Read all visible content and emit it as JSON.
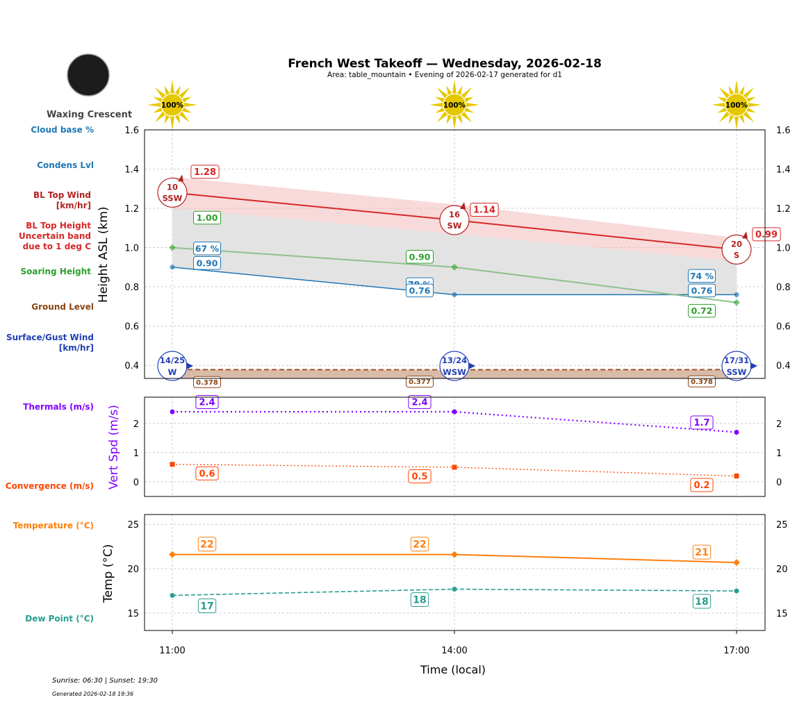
{
  "title": "French West Takeoff — Wednesday, 2026-02-18",
  "subtitle": "Area: table_mountain • Evening of 2026-02-17 generated for d1",
  "moon_phase": "Waxing Crescent",
  "footer": {
    "sun": "Sunrise: 06:30 | Sunset: 19:30",
    "generated": "Generated 2026-02-18 19:36"
  },
  "legend_labels": {
    "cloud_base": "Cloud base %",
    "condens": "Condens Lvl",
    "bl_wind_1": "BL Top Wind",
    "bl_wind_2": "[km/hr]",
    "bl_height_1": "BL Top Height",
    "bl_height_2": "Uncertain band",
    "bl_height_3": "due to 1 deg C",
    "soaring": "Soaring Height",
    "ground": "Ground Level",
    "surface_1": "Surface/Gust Wind",
    "surface_2": "[km/hr]",
    "thermals": "Thermals (m/s)",
    "convergence": "Convergence (m/s)",
    "temperature": "Temperature (°C)",
    "dew": "Dew Point (°C)"
  },
  "colors": {
    "cloud": "#1f77b4",
    "bl_wind": "#b22222",
    "bl_height": "#d62728",
    "soaring": "#2ca02c",
    "ground": "#8b4513",
    "surface": "#1f3fb4",
    "thermals": "#8000ff",
    "convergence": "#ff4500",
    "temperature": "#ff7f0e",
    "dew": "#2a9d8f",
    "sun": "#e6c800"
  },
  "chart_data": [
    {
      "type": "line",
      "ylabel": "Height ASL (km)",
      "ylim": [
        0.333,
        1.6
      ],
      "yticks": [
        "0.4",
        "0.6",
        "0.8",
        "1.0",
        "1.2",
        "1.4",
        "1.6"
      ],
      "grid": true,
      "x": [
        "11:00",
        "14:00",
        "17:00"
      ],
      "sun_percent": [
        "100%",
        "100%",
        "100%"
      ],
      "bl_top_height": {
        "values": [
          1.28,
          1.14,
          0.99
        ],
        "labels": [
          "1.28",
          "1.14",
          "0.99"
        ],
        "band_upper": [
          1.36,
          1.22,
          1.05
        ],
        "band_lower": [
          1.2,
          1.07,
          0.93
        ]
      },
      "bl_top_wind": {
        "speed": [
          "10",
          "16",
          "20"
        ],
        "dir": [
          "SSW",
          "SW",
          "S"
        ]
      },
      "soaring_height": {
        "values": [
          1.0,
          0.9,
          0.72
        ],
        "labels": [
          "1.00",
          "0.90",
          "0.72"
        ]
      },
      "condens_level": {
        "values": [
          0.9,
          0.76,
          0.76
        ],
        "labels": [
          "0.90",
          "0.76",
          "0.76"
        ]
      },
      "cloud_base_percent": [
        "67 %",
        "78 %",
        "74 %"
      ],
      "ground_level": {
        "values": [
          0.378,
          0.377,
          0.378
        ],
        "labels": [
          "0.378",
          "0.377",
          "0.378"
        ]
      },
      "surface_wind": {
        "speed": [
          "14/25",
          "13/24",
          "17/31"
        ],
        "dir": [
          "W",
          "WSW",
          "SSW"
        ]
      }
    },
    {
      "type": "line",
      "ylabel": "Vert Spd (m/s)",
      "ylim": [
        -0.5,
        2.9
      ],
      "yticks": [
        "0",
        "1",
        "2"
      ],
      "grid": true,
      "series": [
        {
          "name": "Thermals (m/s)",
          "values": [
            2.4,
            2.4,
            1.7
          ],
          "labels": [
            "2.4",
            "2.4",
            "1.7"
          ]
        },
        {
          "name": "Convergence (m/s)",
          "values": [
            0.6,
            0.5,
            0.2
          ],
          "labels": [
            "0.6",
            "0.5",
            "0.2"
          ]
        }
      ]
    },
    {
      "type": "line",
      "ylabel": "Temp (°C)",
      "xlabel": "Time (local)",
      "ylim": [
        13.05,
        26.1
      ],
      "yticks": [
        "15",
        "20",
        "25"
      ],
      "xticks": [
        "11:00",
        "14:00",
        "17:00"
      ],
      "grid": true,
      "series": [
        {
          "name": "Temperature (°C)",
          "values": [
            21.6,
            21.6,
            20.7
          ],
          "labels": [
            "22",
            "22",
            "21"
          ]
        },
        {
          "name": "Dew Point (°C)",
          "values": [
            17.0,
            17.7,
            17.5
          ],
          "labels": [
            "17",
            "18",
            "18"
          ]
        }
      ]
    }
  ]
}
